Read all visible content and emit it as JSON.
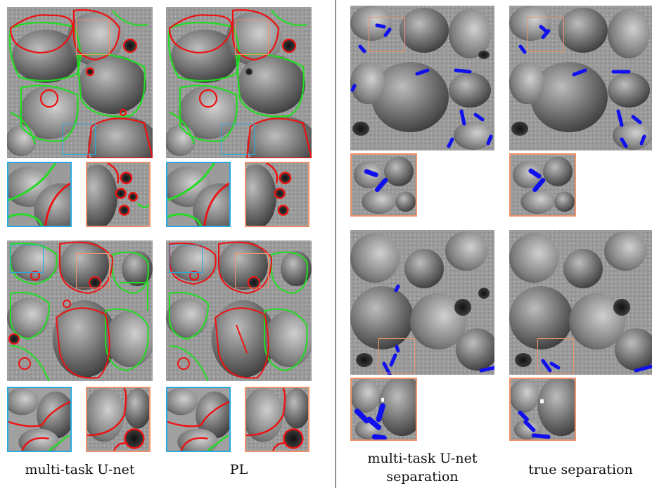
{
  "captions": {
    "multitask": "multi-task U-net",
    "pl": "PL",
    "multitask_sep_line1": "multi-task U-net",
    "multitask_sep_line2": "separation",
    "true_sep": "true separation"
  },
  "colors": {
    "green_boundary": "#22dd22",
    "red_boundary": "#ee1111",
    "blue_separation": "#1010ee",
    "inset_blue": "#29a9e0",
    "inset_orange": "#f0936a",
    "divider": "#222222"
  }
}
